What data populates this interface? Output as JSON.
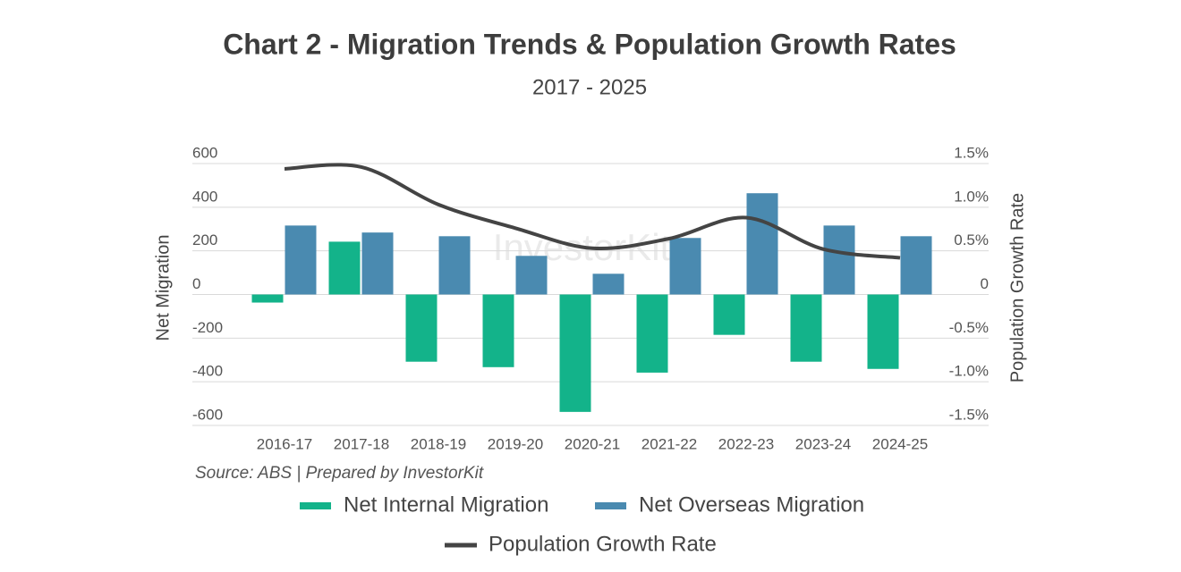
{
  "chart_data": {
    "type": "bar-line",
    "title": "Chart 2 - Migration Trends & Population Growth Rates",
    "subtitle": "2017 - 2025",
    "y_label": "Net Migration",
    "y2_label": "Population Growth Rate",
    "source": "Source: ABS | Prepared by InvestorKit",
    "watermark": "InvestorKit",
    "categories": [
      "2016-17",
      "2017-18",
      "2018-19",
      "2019-20",
      "2020-21",
      "2021-22",
      "2022-23",
      "2023-24",
      "2024-25"
    ],
    "series": [
      {
        "name": "Net Internal Migration",
        "type": "bar",
        "color": "#13b38a",
        "values": [
          -37,
          242,
          -308,
          -333,
          -538,
          -358,
          -185,
          -308,
          -341
        ]
      },
      {
        "name": "Net Overseas Migration",
        "type": "bar",
        "color": "#4a8ab0",
        "values": [
          316,
          284,
          267,
          177,
          95,
          259,
          464,
          316,
          267
        ]
      },
      {
        "name": "Population Growth Rate",
        "type": "line",
        "axis": "y2",
        "color": "#444444",
        "values": [
          1.44,
          1.46,
          1.03,
          0.76,
          0.53,
          0.64,
          0.88,
          0.52,
          0.42
        ]
      }
    ],
    "ylim": [
      -600,
      600
    ],
    "yticks": [
      600,
      400,
      200,
      0,
      -200,
      -400,
      -600
    ],
    "y2lim": [
      -1.5,
      1.5
    ],
    "y2ticks": [
      {
        "value": 1.5,
        "label": "1.5%"
      },
      {
        "value": 1.0,
        "label": "1.0%"
      },
      {
        "value": 0.5,
        "label": "0.5%"
      },
      0,
      {
        "value": -0.5,
        "label": "-0.5%"
      },
      {
        "value": -1.0,
        "label": "-1.0%"
      },
      {
        "value": -1.5,
        "label": "-1.5%"
      }
    ],
    "grid": true
  }
}
